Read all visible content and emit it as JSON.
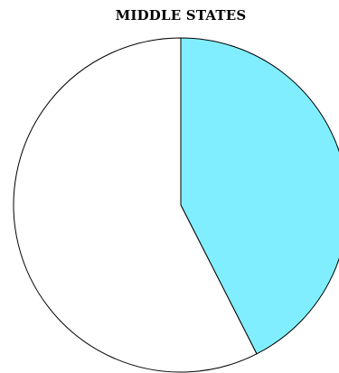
{
  "chart_data": {
    "type": "pie",
    "title": "MIDDLE STATES",
    "slices": [
      {
        "value": 42.5,
        "color": "#80eeff"
      },
      {
        "value": 57.5,
        "color": "#ffffff"
      }
    ],
    "start_angle_deg": 0,
    "direction": "clockwise",
    "legend": "none"
  }
}
